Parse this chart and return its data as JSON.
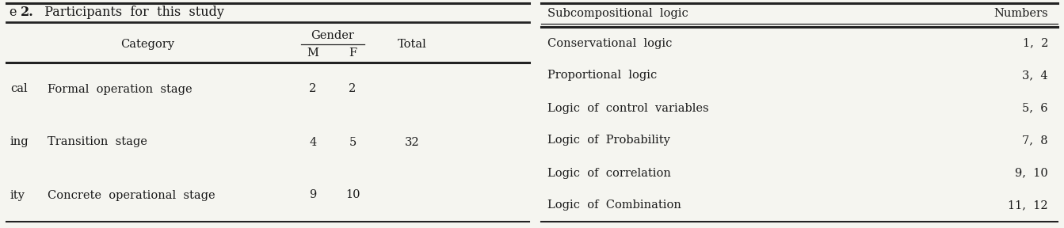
{
  "table2_title_bold": "2.",
  "table2_title_rest": "  Participants  for  this  study",
  "table2_title_prefix": "e ",
  "table2_rows": [
    [
      "cal",
      "Formal  operation  stage",
      "2",
      "2",
      ""
    ],
    [
      "ing",
      "Transition  stage",
      "4",
      "5",
      "32"
    ],
    [
      "ity",
      "Concrete  operational  stage",
      "9",
      "10",
      ""
    ]
  ],
  "table3_col1_header": "Subcompositional  logic",
  "table3_col2_header": "Numbers",
  "table3_rows": [
    [
      "Conservational  logic",
      "1,  2"
    ],
    [
      "Proportional  logic",
      "3,  4"
    ],
    [
      "Logic  of  control  variables",
      "5,  6"
    ],
    [
      "Logic  of  Probability",
      "7,  8"
    ],
    [
      "Logic  of  correlation",
      "9,  10"
    ],
    [
      "Logic  of  Combination",
      "11,  12"
    ]
  ],
  "bg_color": "#f5f5f0",
  "text_color": "#1a1a1a",
  "line_color": "#222222",
  "font_size": 10.5,
  "title_font_size": 11.5
}
